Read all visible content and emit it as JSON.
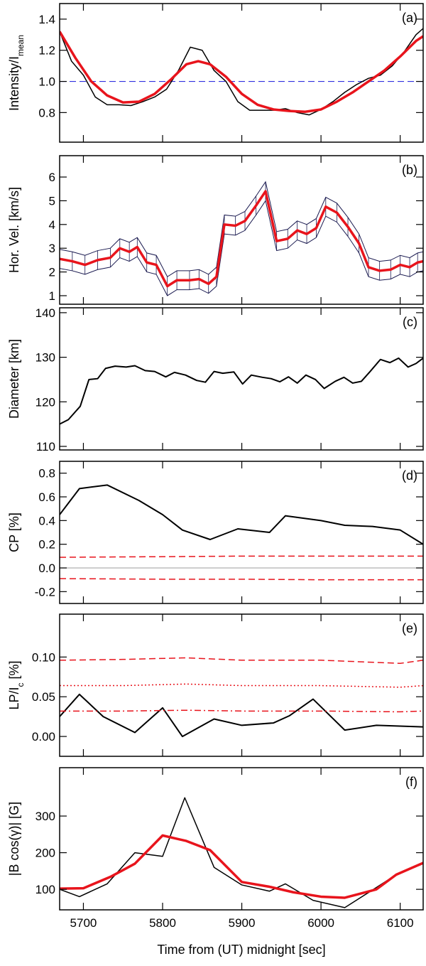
{
  "chart_data": [
    {
      "type": "line",
      "panel_label": "(a)",
      "ylabel": [
        {
          "text": "Intensity/I"
        },
        {
          "text": "mean",
          "sub": true
        }
      ],
      "xlim": [
        5670,
        6129
      ],
      "xticks": [
        5700,
        5800,
        5900,
        6000,
        6100
      ],
      "ylim": [
        0.61,
        1.5
      ],
      "yticks": [
        {
          "value": 0.8,
          "label": "0.8"
        },
        {
          "value": 1.0,
          "label": "1.0"
        },
        {
          "value": 1.2,
          "label": "1.2"
        },
        {
          "value": 1.4,
          "label": "1.4"
        }
      ],
      "hlines": [
        {
          "y": 1.0,
          "color": "#3030e0",
          "dash": "dashed"
        }
      ],
      "series": [
        {
          "color": "#000000",
          "width": 1.5,
          "x": [
            5670,
            5685,
            5700,
            5715,
            5730,
            5745,
            5760,
            5775,
            5790,
            5805,
            5820,
            5835,
            5850,
            5865,
            5880,
            5895,
            5910,
            5925,
            5940,
            5955,
            5970,
            5985,
            6000,
            6015,
            6030,
            6045,
            6060,
            6075,
            6090,
            6105,
            6120,
            6129
          ],
          "values": [
            1.32,
            1.13,
            1.04,
            0.9,
            0.85,
            0.85,
            0.845,
            0.87,
            0.9,
            0.95,
            1.07,
            1.22,
            1.2,
            1.07,
            1.0,
            0.87,
            0.815,
            0.815,
            0.815,
            0.825,
            0.8,
            0.785,
            0.82,
            0.87,
            0.93,
            0.98,
            1.02,
            1.04,
            1.1,
            1.19,
            1.3,
            1.34
          ]
        },
        {
          "color": "#e8141c",
          "width": 3.5,
          "x": [
            5670,
            5690,
            5710,
            5730,
            5750,
            5770,
            5790,
            5810,
            5830,
            5845,
            5860,
            5880,
            5900,
            5920,
            5940,
            5960,
            5980,
            6000,
            6020,
            6040,
            6060,
            6080,
            6100,
            6120,
            6129
          ],
          "values": [
            1.32,
            1.15,
            1.0,
            0.91,
            0.865,
            0.87,
            0.92,
            1.01,
            1.11,
            1.13,
            1.11,
            1.03,
            0.92,
            0.85,
            0.82,
            0.81,
            0.805,
            0.82,
            0.87,
            0.93,
            1.0,
            1.07,
            1.16,
            1.26,
            1.29
          ]
        }
      ]
    },
    {
      "type": "line",
      "panel_label": "(b)",
      "ylabel": [
        {
          "text": "Hor. Vel. [km/s]"
        }
      ],
      "xlim": [
        5670,
        6129
      ],
      "xticks": [
        5700,
        5800,
        5900,
        6000,
        6100
      ],
      "ylim": [
        0.64,
        6.9
      ],
      "yticks": [
        1,
        2,
        3,
        4,
        5,
        6
      ],
      "series": [
        {
          "color": "#e8141c",
          "width": 3.5,
          "error": 0.4,
          "error_color": "#1a1a50",
          "x": [
            5670,
            5686,
            5702,
            5718,
            5734,
            5746,
            5758,
            5768,
            5780,
            5792,
            5806,
            5818,
            5834,
            5846,
            5858,
            5868,
            5878,
            5892,
            5904,
            5918,
            5930,
            5944,
            5958,
            5970,
            5982,
            5994,
            6006,
            6020,
            6034,
            6048,
            6060,
            6074,
            6088,
            6100,
            6112,
            6122,
            6129
          ],
          "values": [
            2.55,
            2.45,
            2.3,
            2.5,
            2.6,
            3.0,
            2.85,
            3.05,
            2.4,
            2.3,
            1.4,
            1.65,
            1.65,
            1.7,
            1.5,
            1.8,
            4.0,
            3.95,
            4.15,
            4.8,
            5.4,
            3.3,
            3.4,
            3.75,
            3.6,
            3.85,
            4.75,
            4.5,
            3.9,
            3.2,
            2.2,
            2.05,
            2.1,
            2.3,
            2.2,
            2.4,
            2.45
          ]
        }
      ]
    },
    {
      "type": "line",
      "panel_label": "(c)",
      "ylabel": [
        {
          "text": "Diameter [km]"
        }
      ],
      "xlim": [
        5670,
        6129
      ],
      "xticks": [
        5700,
        5800,
        5900,
        6000,
        6100
      ],
      "ylim": [
        109.2,
        141.1
      ],
      "yticks": [
        110,
        120,
        130,
        140
      ],
      "series": [
        {
          "color": "#000000",
          "width": 2,
          "x": [
            5670,
            5681,
            5696,
            5707,
            5718,
            5728,
            5740,
            5754,
            5765,
            5778,
            5790,
            5804,
            5815,
            5829,
            5843,
            5854,
            5865,
            5876,
            5890,
            5901,
            5912,
            5926,
            5937,
            5948,
            5959,
            5970,
            5981,
            5993,
            6004,
            6018,
            6029,
            6040,
            6051,
            6062,
            6075,
            6087,
            6098,
            6110,
            6120,
            6129
          ],
          "values": [
            115,
            116,
            119,
            125,
            125.2,
            127.5,
            128,
            127.8,
            128.1,
            127,
            126.8,
            125.6,
            126.6,
            126,
            124.8,
            124.4,
            126.8,
            126.4,
            126.7,
            124,
            126,
            125.5,
            125.2,
            124.5,
            125.6,
            124.2,
            126,
            125,
            123,
            124.6,
            125.5,
            124.2,
            124.6,
            126.8,
            129.5,
            128.8,
            129.8,
            127.8,
            128.6,
            129.8
          ]
        }
      ]
    },
    {
      "type": "line",
      "panel_label": "(d)",
      "ylabel": [
        {
          "text": "CP [%]"
        }
      ],
      "xlim": [
        5670,
        6129
      ],
      "xticks": [
        5700,
        5800,
        5900,
        6000,
        6100
      ],
      "ylim": [
        -0.3,
        0.9
      ],
      "yticks": [
        {
          "value": -0.2,
          "label": "-0.2"
        },
        {
          "value": 0,
          "label": "0.0"
        },
        0.2,
        0.4,
        0.6,
        0.8
      ],
      "hlines": [
        {
          "y": 0,
          "color": "#b0b0b0",
          "dash": "solid"
        }
      ],
      "series": [
        {
          "color": "#000000",
          "width": 2,
          "x": [
            5670,
            5695,
            5730,
            5770,
            5800,
            5825,
            5860,
            5895,
            5935,
            5955,
            6000,
            6030,
            6065,
            6100,
            6129
          ],
          "values": [
            0.45,
            0.67,
            0.7,
            0.57,
            0.45,
            0.32,
            0.24,
            0.33,
            0.3,
            0.44,
            0.4,
            0.36,
            0.35,
            0.32,
            0.2
          ]
        },
        {
          "color": "#e8141c",
          "width": 1.5,
          "dash": "dashed",
          "x": [
            5670,
            5800,
            5900,
            6000,
            6129
          ],
          "values": [
            0.09,
            0.095,
            0.1,
            0.1,
            0.1
          ]
        },
        {
          "color": "#e8141c",
          "width": 1.5,
          "dash": "dashed",
          "x": [
            5670,
            5800,
            5900,
            6000,
            6129
          ],
          "values": [
            -0.09,
            -0.095,
            -0.095,
            -0.1,
            -0.1
          ]
        }
      ]
    },
    {
      "type": "line",
      "panel_label": "(e)",
      "ylabel": [
        {
          "text": "LP/I"
        },
        {
          "text": "c",
          "sub": true
        },
        {
          "text": " [%]"
        }
      ],
      "xlim": [
        5670,
        6129
      ],
      "xticks": [
        5700,
        5800,
        5900,
        6000,
        6100
      ],
      "ylim": [
        -0.025,
        0.154
      ],
      "yticks": [
        {
          "value": 0,
          "label": "0.00"
        },
        {
          "value": 0.05,
          "label": "0.05"
        },
        {
          "value": 0.1,
          "label": "0.10"
        }
      ],
      "series": [
        {
          "color": "#000000",
          "width": 2,
          "x": [
            5670,
            5695,
            5725,
            5765,
            5800,
            5825,
            5865,
            5900,
            5940,
            5960,
            5990,
            6030,
            6070,
            6129
          ],
          "values": [
            0.025,
            0.053,
            0.025,
            0.005,
            0.036,
            0.0,
            0.022,
            0.014,
            0.017,
            0.026,
            0.047,
            0.008,
            0.014,
            0.012
          ]
        },
        {
          "color": "#e8141c",
          "width": 1.5,
          "dash": "dashed",
          "x": [
            5670,
            5750,
            5830,
            5900,
            6000,
            6100,
            6129
          ],
          "values": [
            0.096,
            0.097,
            0.099,
            0.096,
            0.096,
            0.092,
            0.096
          ]
        },
        {
          "color": "#e8141c",
          "width": 1.5,
          "dash": "dotted",
          "x": [
            5670,
            5750,
            5830,
            5900,
            6000,
            6100,
            6129
          ],
          "values": [
            0.064,
            0.064,
            0.066,
            0.064,
            0.064,
            0.062,
            0.064
          ]
        },
        {
          "color": "#e8141c",
          "width": 1.5,
          "dash": "dashdot",
          "x": [
            5670,
            5750,
            5830,
            5900,
            6000,
            6100,
            6129
          ],
          "values": [
            0.032,
            0.032,
            0.033,
            0.032,
            0.032,
            0.031,
            0.032
          ]
        }
      ]
    },
    {
      "type": "line",
      "panel_label": "(f)",
      "ylabel": [
        {
          "text": "|B cos(γ)| [G]"
        }
      ],
      "xlabel": "Time from (UT) midnight [sec]",
      "xlim": [
        5670,
        6129
      ],
      "xticks": [
        5700,
        5800,
        5900,
        6000,
        6100
      ],
      "ylim": [
        44,
        432
      ],
      "yticks": [
        100,
        200,
        300
      ],
      "series": [
        {
          "color": "#000000",
          "width": 1.5,
          "x": [
            5670,
            5695,
            5730,
            5765,
            5800,
            5828,
            5865,
            5900,
            5935,
            5955,
            5990,
            6030,
            6070,
            6095,
            6129
          ],
          "values": [
            100,
            80,
            115,
            200,
            190,
            350,
            160,
            112,
            95,
            115,
            70,
            50,
            105,
            140,
            170
          ]
        },
        {
          "color": "#e8141c",
          "width": 3.5,
          "x": [
            5670,
            5700,
            5735,
            5765,
            5800,
            5830,
            5860,
            5900,
            5935,
            5965,
            6000,
            6030,
            6070,
            6095,
            6129
          ],
          "values": [
            102,
            103,
            135,
            170,
            247,
            232,
            207,
            120,
            107,
            92,
            80,
            77,
            100,
            140,
            172
          ]
        }
      ]
    }
  ]
}
